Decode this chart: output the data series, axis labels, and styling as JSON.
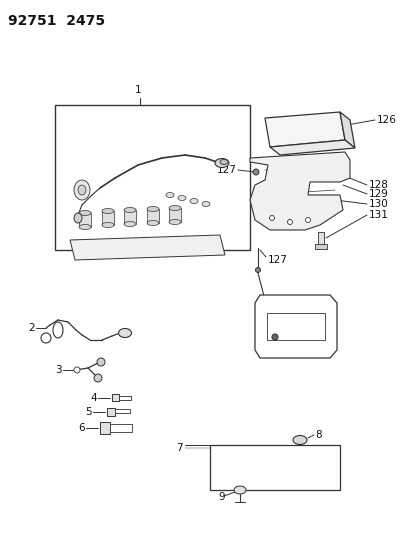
{
  "title": "92751  2475",
  "bg_color": "#ffffff",
  "line_color": "#333333",
  "text_color": "#111111",
  "fig_width": 4.14,
  "fig_height": 5.33,
  "dpi": 100,
  "title_fontsize": 10,
  "label_fontsize": 7.5
}
